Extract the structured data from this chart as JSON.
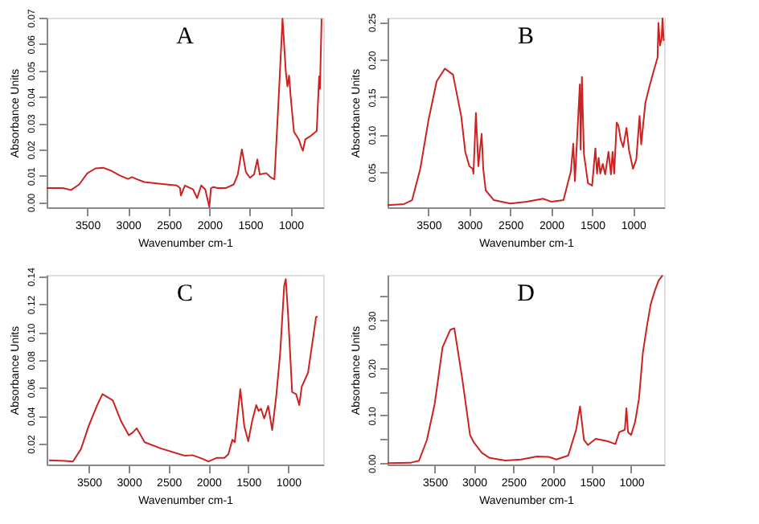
{
  "chart_data": [
    {
      "type": "line",
      "title": "A",
      "xlabel": "Wavenumber cm-1",
      "ylabel": "Absorbance Units",
      "grid": false,
      "xlim": [
        4000,
        600
      ],
      "ylim": [
        -0.002,
        0.07
      ],
      "xticks": [
        3500,
        3000,
        2500,
        2000,
        1500,
        1000
      ],
      "yticks": [
        {
          "value": 0,
          "label": "0.00"
        },
        {
          "value": 0.01,
          "label": "0.01"
        },
        {
          "value": 0.02,
          "label": "0.02"
        },
        {
          "value": 0.03,
          "label": "0.03"
        },
        {
          "value": 0.04,
          "label": "0.04"
        },
        {
          "value": 0.05,
          "label": "0.05"
        },
        {
          "value": 0.06,
          "label": "0.06"
        },
        {
          "value": 0.07,
          "label": "0.07"
        }
      ],
      "x": [
        4000,
        3800,
        3700,
        3600,
        3500,
        3400,
        3300,
        3200,
        3100,
        3000,
        2950,
        2900,
        2800,
        2600,
        2400,
        2360,
        2350,
        2300,
        2200,
        2150,
        2100,
        2050,
        2000,
        1980,
        1950,
        1900,
        1800,
        1700,
        1650,
        1600,
        1550,
        1500,
        1450,
        1410,
        1380,
        1300,
        1250,
        1200,
        1150,
        1100,
        1060,
        1040,
        1020,
        1000,
        960,
        900,
        870,
        850,
        820,
        750,
        680,
        650,
        640,
        620
      ],
      "series": [
        {
          "color": "#cc2222",
          "values": [
            0.0053,
            0.0053,
            0.0046,
            0.0067,
            0.0109,
            0.0128,
            0.013,
            0.0118,
            0.0101,
            0.0088,
            0.0095,
            0.0088,
            0.0076,
            0.0069,
            0.0063,
            0.0053,
            0.0025,
            0.0063,
            0.0048,
            0.0015,
            0.0063,
            0.0048,
            -0.0019,
            0.0053,
            0.0057,
            0.0053,
            0.0053,
            0.0067,
            0.0105,
            0.02,
            0.0114,
            0.0092,
            0.0105,
            0.0162,
            0.0105,
            0.011,
            0.0095,
            0.0086,
            0.038,
            0.0696,
            0.0496,
            0.0439,
            0.048,
            0.04,
            0.0267,
            0.0238,
            0.021,
            0.0195,
            0.0238,
            0.0252,
            0.027,
            0.0477,
            0.043,
            0.0696
          ]
        }
      ]
    },
    {
      "type": "line",
      "title": "B",
      "xlabel": "Wavenumber cm-1",
      "ylabel": "Absorbance Units",
      "grid": false,
      "xlim": [
        4000,
        620
      ],
      "ylim": [
        0.003,
        0.256
      ],
      "xticks": [
        3500,
        3000,
        2500,
        2000,
        1500,
        1000
      ],
      "yticks": [
        {
          "value": 0.05,
          "label": "0.05"
        },
        {
          "value": 0.1,
          "label": "0.10"
        },
        {
          "value": 0.15,
          "label": "0.15"
        },
        {
          "value": 0.2,
          "label": "0.20"
        },
        {
          "value": 0.25,
          "label": "0.25"
        }
      ],
      "x": [
        4000,
        3800,
        3700,
        3600,
        3500,
        3400,
        3300,
        3200,
        3100,
        3050,
        3000,
        2960,
        2950,
        2920,
        2890,
        2850,
        2830,
        2800,
        2700,
        2500,
        2300,
        2100,
        2000,
        1850,
        1760,
        1730,
        1710,
        1650,
        1640,
        1625,
        1600,
        1550,
        1500,
        1460,
        1440,
        1420,
        1400,
        1370,
        1340,
        1300,
        1270,
        1250,
        1230,
        1200,
        1180,
        1150,
        1120,
        1080,
        1050,
        1000,
        960,
        920,
        900,
        850,
        800,
        750,
        700,
        690,
        670,
        650,
        640,
        625
      ],
      "series": [
        {
          "color": "#cc2222",
          "values": [
            0.006,
            0.0074,
            0.0126,
            0.0545,
            0.119,
            0.171,
            0.188,
            0.18,
            0.125,
            0.077,
            0.058,
            0.0545,
            0.048,
            0.129,
            0.058,
            0.101,
            0.054,
            0.0255,
            0.0126,
            0.008,
            0.0106,
            0.0145,
            0.0106,
            0.0126,
            0.051,
            0.088,
            0.038,
            0.167,
            0.08,
            0.177,
            0.074,
            0.035,
            0.032,
            0.0816,
            0.048,
            0.069,
            0.048,
            0.061,
            0.047,
            0.077,
            0.047,
            0.077,
            0.048,
            0.116,
            0.1126,
            0.093,
            0.0835,
            0.109,
            0.08,
            0.0545,
            0.067,
            0.125,
            0.087,
            0.142,
            0.164,
            0.184,
            0.203,
            0.249,
            0.219,
            0.229,
            0.255,
            0.225
          ]
        }
      ]
    },
    {
      "type": "line",
      "title": "C",
      "xlabel": "Wavenumber cm-1",
      "ylabel": "Absorbance Units",
      "grid": false,
      "xlim": [
        4030,
        560
      ],
      "ylim": [
        0.005,
        0.141
      ],
      "xticks": [
        3500,
        3000,
        2500,
        2000,
        1500,
        1000
      ],
      "yticks": [
        {
          "value": 0.02,
          "label": "0.02"
        },
        {
          "value": 0.04,
          "label": "0.04"
        },
        {
          "value": 0.06,
          "label": "0.06"
        },
        {
          "value": 0.08,
          "label": "0.08"
        },
        {
          "value": 0.1,
          "label": "0.10"
        },
        {
          "value": 0.12,
          "label": "0.12"
        },
        {
          "value": 0.14,
          "label": "0.14"
        }
      ],
      "x": [
        4000,
        3800,
        3700,
        3600,
        3500,
        3400,
        3330,
        3200,
        3100,
        3000,
        2950,
        2900,
        2850,
        2800,
        2600,
        2400,
        2300,
        2200,
        2100,
        2000,
        1900,
        1800,
        1750,
        1700,
        1670,
        1600,
        1550,
        1500,
        1450,
        1400,
        1370,
        1340,
        1300,
        1250,
        1200,
        1150,
        1100,
        1050,
        1030,
        1000,
        950,
        900,
        860,
        830,
        750,
        680,
        650,
        630
      ],
      "series": [
        {
          "color": "#cc2222",
          "values": [
            0.008,
            0.0076,
            0.0072,
            0.016,
            0.033,
            0.047,
            0.0555,
            0.051,
            0.0366,
            0.026,
            0.028,
            0.031,
            0.026,
            0.021,
            0.0166,
            0.0131,
            0.0114,
            0.0117,
            0.0097,
            0.0072,
            0.0097,
            0.0097,
            0.0124,
            0.0228,
            0.021,
            0.059,
            0.0324,
            0.0217,
            0.0366,
            0.0476,
            0.0434,
            0.045,
            0.038,
            0.047,
            0.0297,
            0.0538,
            0.0848,
            0.133,
            0.138,
            0.112,
            0.057,
            0.0555,
            0.0476,
            0.0607,
            0.071,
            0.0986,
            0.1107,
            0.111
          ]
        }
      ]
    },
    {
      "type": "line",
      "title": "D",
      "xlabel": "Wavenumber cm-1",
      "ylabel": "Absorbance Units",
      "grid": false,
      "xlim": [
        4100,
        580
      ],
      "ylim": [
        -0.003,
        0.395
      ],
      "xticks": [
        3500,
        3000,
        2500,
        2000,
        1500,
        1000
      ],
      "yticks": [
        {
          "value": 0,
          "label": "0.00"
        },
        {
          "value": 0.05,
          "label": null
        },
        {
          "value": 0.1,
          "label": "0.10"
        },
        {
          "value": 0.15,
          "label": null
        },
        {
          "value": 0.2,
          "label": "0.20"
        },
        {
          "value": 0.25,
          "label": null
        },
        {
          "value": 0.3,
          "label": "0.30"
        },
        {
          "value": 0.35,
          "label": null
        }
      ],
      "x": [
        4100,
        3800,
        3700,
        3600,
        3500,
        3400,
        3300,
        3250,
        3150,
        3050,
        3000,
        2900,
        2800,
        2600,
        2400,
        2200,
        2050,
        1950,
        1800,
        1700,
        1650,
        1600,
        1550,
        1450,
        1300,
        1200,
        1150,
        1080,
        1060,
        1040,
        1000,
        950,
        900,
        850,
        800,
        750,
        700,
        650,
        600
      ],
      "series": [
        {
          "color": "#cc2222",
          "values": [
            0,
            0.001,
            0.005,
            0.048,
            0.124,
            0.243,
            0.28,
            0.283,
            0.178,
            0.059,
            0.043,
            0.0216,
            0.0108,
            0.0054,
            0.0076,
            0.014,
            0.013,
            0.0076,
            0.016,
            0.07,
            0.119,
            0.0485,
            0.038,
            0.051,
            0.046,
            0.04,
            0.065,
            0.07,
            0.115,
            0.065,
            0.059,
            0.086,
            0.135,
            0.232,
            0.286,
            0.334,
            0.361,
            0.383,
            0.394
          ]
        }
      ]
    }
  ]
}
